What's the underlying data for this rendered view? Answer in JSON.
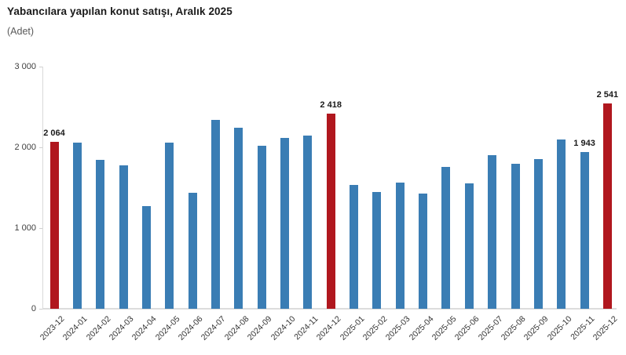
{
  "header": {
    "title": "Yabancılara yapılan konut satışı, Aralık 2025",
    "subtitle": "(Adet)"
  },
  "chart_data": {
    "type": "bar",
    "title": "Yabancılara yapılan konut satışı, Aralık 2025",
    "subtitle": "(Adet)",
    "xlabel": "",
    "ylabel": "Adet",
    "categories": [
      "2023-12",
      "2024-01",
      "2024-02",
      "2024-03",
      "2024-04",
      "2024-05",
      "2024-06",
      "2024-07",
      "2024-08",
      "2024-09",
      "2024-10",
      "2024-11",
      "2024-12",
      "2025-01",
      "2025-02",
      "2025-03",
      "2025-04",
      "2025-05",
      "2025-06",
      "2025-07",
      "2025-08",
      "2025-09",
      "2025-10",
      "2025-11",
      "2025-12"
    ],
    "values": [
      2064,
      2060,
      1840,
      1775,
      1270,
      2060,
      1435,
      2340,
      2245,
      2015,
      2115,
      2145,
      2418,
      1535,
      1445,
      1565,
      1430,
      1755,
      1555,
      1900,
      1800,
      1855,
      2095,
      1943,
      2541
    ],
    "highlighted_indices": [
      0,
      12,
      24
    ],
    "data_labels": {
      "0": "2 064",
      "12": "2 418",
      "23": "1 943",
      "24": "2 541"
    },
    "yticks": [
      0,
      1000,
      2000,
      3000
    ],
    "ytick_labels": [
      "0",
      "1 000",
      "2 000",
      "3 000"
    ],
    "ylim": [
      0,
      3000
    ],
    "grid": false,
    "legend": false,
    "colors": {
      "bar": "#3A7DB4",
      "highlight": "#B0171E",
      "axis": "#D9D9D9",
      "tick_text": "#404040",
      "label_text": "#1A1A1A"
    }
  }
}
